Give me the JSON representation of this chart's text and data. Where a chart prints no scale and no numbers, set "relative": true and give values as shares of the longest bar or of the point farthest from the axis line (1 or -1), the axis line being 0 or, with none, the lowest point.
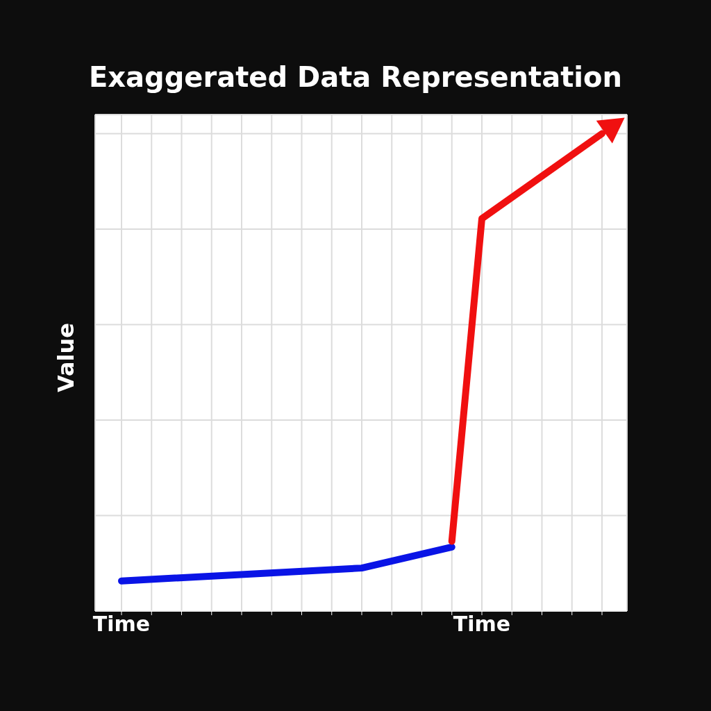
{
  "chart_data": {
    "type": "line",
    "title": "Exaggerated Data Representation",
    "ylabel": "Value",
    "relative": true,
    "categories": [
      "Time",
      null,
      null,
      null,
      null,
      null,
      null,
      null,
      null,
      null,
      null,
      null,
      "Time",
      null,
      null,
      null,
      null
    ],
    "series": [
      {
        "color": "#0a14e6",
        "values": [
          0.063,
          null,
          null,
          null,
          null,
          null,
          null,
          null,
          0.09,
          null,
          null,
          0.134,
          null,
          null,
          null,
          null,
          null
        ]
      },
      {
        "color": "#f01010",
        "values": [
          null,
          null,
          null,
          null,
          null,
          null,
          null,
          null,
          null,
          null,
          null,
          0.146,
          0.822,
          null,
          null,
          null,
          1
        ]
      }
    ],
    "grid": true,
    "marker": "none",
    "line_style": "solid"
  }
}
